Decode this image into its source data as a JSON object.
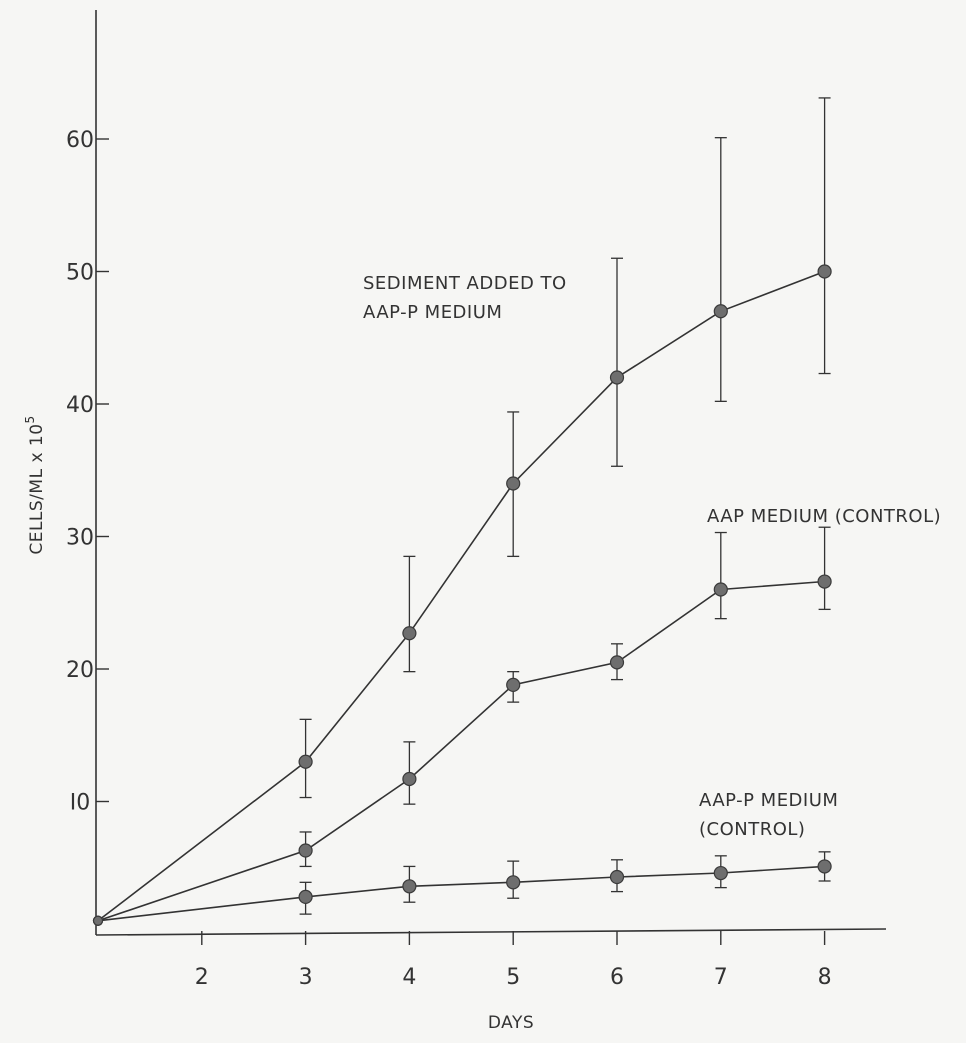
{
  "chart_data": {
    "type": "line",
    "xlabel": "DAYS",
    "ylabel": "CELLS/ML x 10",
    "ylabel_exponent": "5",
    "xlim": [
      1,
      8.6
    ],
    "ylim": [
      0,
      69
    ],
    "x_ticks": [
      2,
      3,
      4,
      5,
      6,
      7,
      8
    ],
    "x_tick_labels": [
      "2",
      "3",
      "4",
      "5",
      "6",
      "7",
      "8"
    ],
    "y_ticks": [
      10,
      20,
      30,
      40,
      50,
      60
    ],
    "y_tick_labels": [
      "I0",
      "20",
      "30",
      "40",
      "50",
      "60"
    ],
    "grid": false,
    "legend": "none",
    "annotations": [
      {
        "lines": [
          "SEDIMENT ADDED TO",
          "AAP-P MEDIUM"
        ]
      },
      {
        "lines": [
          "AAP MEDIUM (CONTROL)"
        ]
      },
      {
        "lines": [
          "AAP-P MEDIUM",
          "(CONTROL)"
        ]
      }
    ],
    "series": [
      {
        "x": [
          1,
          3,
          4,
          5,
          6,
          7,
          8
        ],
        "y": [
          1,
          13,
          22.7,
          34,
          42,
          47,
          50
        ],
        "err_low": [
          null,
          10.3,
          19.8,
          28.5,
          35.3,
          40.2,
          42.3
        ],
        "err_high": [
          null,
          16.2,
          28.5,
          39.4,
          51,
          60.1,
          63.1
        ]
      },
      {
        "x": [
          1,
          3,
          4,
          5,
          6,
          7,
          8
        ],
        "y": [
          1,
          6.3,
          11.7,
          18.8,
          20.5,
          26,
          26.6
        ],
        "err_low": [
          null,
          5.1,
          9.8,
          17.5,
          19.2,
          23.8,
          24.5
        ],
        "err_high": [
          null,
          7.7,
          14.5,
          19.8,
          21.9,
          30.3,
          30.7
        ]
      },
      {
        "x": [
          1,
          3,
          4,
          5,
          6,
          7,
          8
        ],
        "y": [
          1,
          2.8,
          3.6,
          3.9,
          4.3,
          4.6,
          5.1
        ],
        "err_low": [
          null,
          1.5,
          2.4,
          2.7,
          3.2,
          3.5,
          4
        ],
        "err_high": [
          null,
          3.9,
          5.1,
          5.5,
          5.6,
          5.9,
          6.2
        ]
      }
    ]
  }
}
